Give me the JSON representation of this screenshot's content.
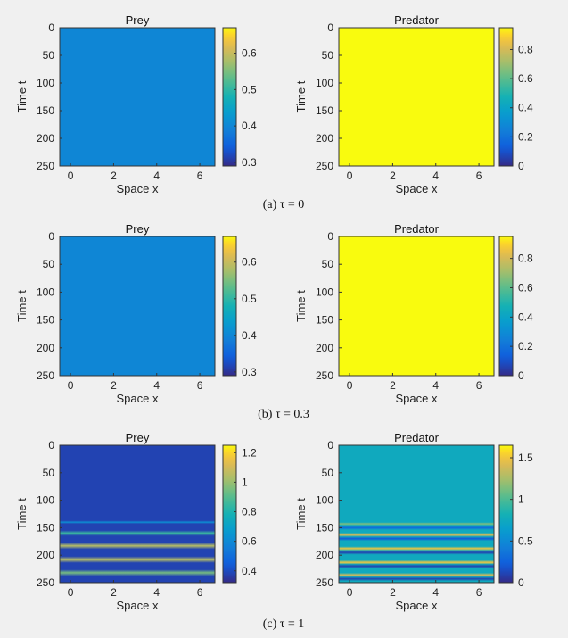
{
  "chart_data": [
    {
      "type": "heatmap",
      "title": "Prey",
      "xlabel": "Space x",
      "ylabel": "Time t",
      "xlim": [
        -0.5,
        6.7
      ],
      "ylim": [
        0,
        250
      ],
      "xticks": [
        "0",
        "2",
        "4",
        "6"
      ],
      "yticks": [
        "0",
        "50",
        "100",
        "150",
        "200",
        "250"
      ],
      "colorbar": {
        "range": [
          0.29,
          0.67
        ],
        "ticks": [
          "0.3",
          "0.4",
          "0.5",
          "0.6"
        ]
      },
      "pattern": "uniform",
      "value": 0.4
    },
    {
      "type": "heatmap",
      "title": "Predator",
      "xlabel": "Space x",
      "ylabel": "Time t",
      "xlim": [
        -0.5,
        6.7
      ],
      "ylim": [
        0,
        250
      ],
      "xticks": [
        "0",
        "2",
        "4",
        "6"
      ],
      "yticks": [
        "0",
        "50",
        "100",
        "150",
        "200",
        "250"
      ],
      "colorbar": {
        "range": [
          0,
          0.95
        ],
        "ticks": [
          "0",
          "0.2",
          "0.4",
          "0.6",
          "0.8"
        ]
      },
      "pattern": "uniform",
      "value": 0.95
    },
    {
      "type": "heatmap",
      "title": "Prey",
      "xlabel": "Space x",
      "ylabel": "Time t",
      "xlim": [
        -0.5,
        6.7
      ],
      "ylim": [
        0,
        250
      ],
      "xticks": [
        "0",
        "2",
        "4",
        "6"
      ],
      "yticks": [
        "0",
        "50",
        "100",
        "150",
        "200",
        "250"
      ],
      "colorbar": {
        "range": [
          0.29,
          0.67
        ],
        "ticks": [
          "0.3",
          "0.4",
          "0.5",
          "0.6"
        ]
      },
      "pattern": "uniform",
      "value": 0.4
    },
    {
      "type": "heatmap",
      "title": "Predator",
      "xlabel": "Space x",
      "ylabel": "Time t",
      "xlim": [
        -0.5,
        6.7
      ],
      "ylim": [
        0,
        250
      ],
      "xticks": [
        "0",
        "2",
        "4",
        "6"
      ],
      "yticks": [
        "0",
        "50",
        "100",
        "150",
        "200",
        "250"
      ],
      "colorbar": {
        "range": [
          0,
          0.95
        ],
        "ticks": [
          "0",
          "0.2",
          "0.4",
          "0.6",
          "0.8"
        ]
      },
      "pattern": "uniform",
      "value": 0.95
    },
    {
      "type": "heatmap",
      "title": "Prey",
      "xlabel": "Space x",
      "ylabel": "Time t",
      "xlim": [
        -0.5,
        6.7
      ],
      "ylim": [
        0,
        250
      ],
      "xticks": [
        "0",
        "2",
        "4",
        "6"
      ],
      "yticks": [
        "0",
        "50",
        "100",
        "150",
        "200",
        "250"
      ],
      "colorbar": {
        "range": [
          0.32,
          1.25
        ],
        "ticks": [
          "0.4",
          "0.6",
          "0.8",
          "1",
          "1.2"
        ]
      },
      "pattern": "bands",
      "value": 0.38,
      "bands": [
        {
          "t": 140,
          "w": 3,
          "v": 0.62
        },
        {
          "t": 160,
          "w": 5,
          "v": 0.85
        },
        {
          "t": 183,
          "w": 6,
          "v": 1.05
        },
        {
          "t": 208,
          "w": 6,
          "v": 1.05
        },
        {
          "t": 232,
          "w": 6,
          "v": 0.95
        }
      ]
    },
    {
      "type": "heatmap",
      "title": "Predator",
      "xlabel": "Space x",
      "ylabel": "Time t",
      "xlim": [
        -0.5,
        6.7
      ],
      "ylim": [
        0,
        250
      ],
      "xticks": [
        "0",
        "2",
        "4",
        "6"
      ],
      "yticks": [
        "0",
        "50",
        "100",
        "150",
        "200",
        "250"
      ],
      "colorbar": {
        "range": [
          0,
          1.65
        ],
        "ticks": [
          "0",
          "0.5",
          "1",
          "1.5"
        ]
      },
      "pattern": "bands",
      "value": 0.75,
      "bands": [
        {
          "t": 143,
          "w": 3,
          "v": 1.15
        },
        {
          "t": 150,
          "w": 4,
          "v": 0.3
        },
        {
          "t": 163,
          "w": 4,
          "v": 1.4
        },
        {
          "t": 170,
          "w": 4,
          "v": 0.2
        },
        {
          "t": 188,
          "w": 4,
          "v": 1.5
        },
        {
          "t": 195,
          "w": 4,
          "v": 0.1
        },
        {
          "t": 213,
          "w": 4,
          "v": 1.5
        },
        {
          "t": 220,
          "w": 4,
          "v": 0.1
        },
        {
          "t": 236,
          "w": 4,
          "v": 1.4
        },
        {
          "t": 243,
          "w": 4,
          "v": 0.1
        }
      ]
    }
  ],
  "captions": [
    "(a) τ = 0",
    "(b) τ = 0.3",
    "(c) τ = 1"
  ]
}
